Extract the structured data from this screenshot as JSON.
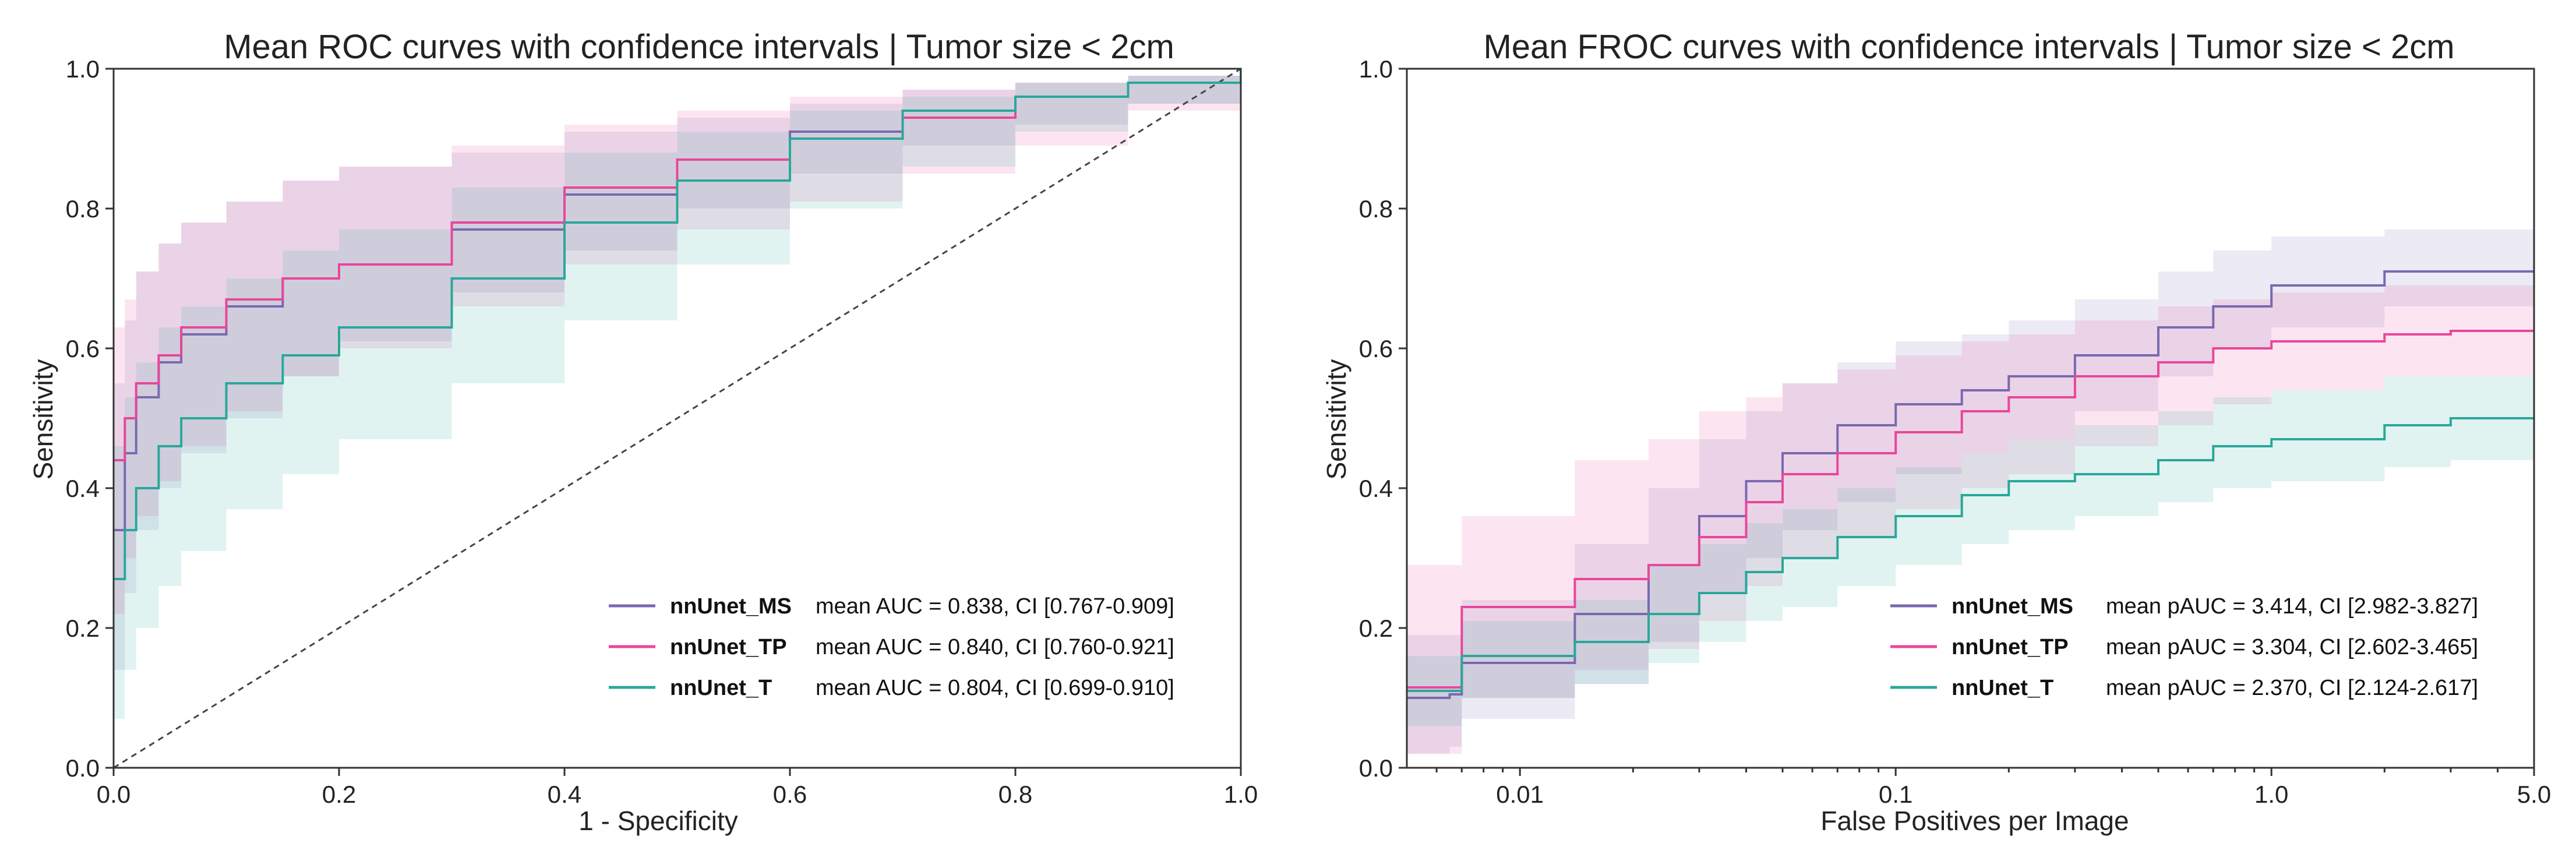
{
  "chart_data": [
    {
      "type": "line",
      "title": "Mean ROC curves with confidence intervals | Tumor size < 2cm",
      "xlabel": "1 - Specificity",
      "ylabel": "Sensitivity",
      "xlim": [
        0.0,
        1.0
      ],
      "ylim": [
        0.0,
        1.0
      ],
      "xscale": "linear",
      "xticks": [
        0.0,
        0.2,
        0.4,
        0.6,
        0.8,
        1.0
      ],
      "xtick_labels": [
        "0.0",
        "0.2",
        "0.4",
        "0.6",
        "0.8",
        "1.0"
      ],
      "yticks": [
        0.0,
        0.2,
        0.4,
        0.6,
        0.8,
        1.0
      ],
      "ytick_labels": [
        "0.0",
        "0.2",
        "0.4",
        "0.6",
        "0.8",
        "1.0"
      ],
      "legend_position": "lower-right",
      "reference_line": {
        "name": "chance",
        "x": [
          0,
          1
        ],
        "y": [
          0,
          1
        ]
      },
      "series": [
        {
          "name": "nnUnet_MS",
          "label": "mean AUC = 0.838, CI [0.767-0.909]",
          "color": "#7b68b0",
          "x": [
            0,
            0.01,
            0.02,
            0.04,
            0.06,
            0.1,
            0.15,
            0.2,
            0.3,
            0.4,
            0.5,
            0.6,
            0.7,
            0.8,
            0.9,
            1.0
          ],
          "y": [
            0.34,
            0.45,
            0.53,
            0.58,
            0.62,
            0.66,
            0.7,
            0.72,
            0.77,
            0.82,
            0.87,
            0.91,
            0.94,
            0.96,
            0.98,
            1.0
          ],
          "ci_low": [
            0.14,
            0.25,
            0.34,
            0.4,
            0.45,
            0.5,
            0.56,
            0.61,
            0.68,
            0.74,
            0.8,
            0.85,
            0.89,
            0.92,
            0.95,
            1.0
          ],
          "ci_high": [
            0.55,
            0.64,
            0.71,
            0.75,
            0.78,
            0.81,
            0.84,
            0.86,
            0.88,
            0.91,
            0.93,
            0.95,
            0.97,
            0.98,
            0.99,
            1.0
          ]
        },
        {
          "name": "nnUnet_TP",
          "label": "mean AUC = 0.840, CI [0.760-0.921]",
          "color": "#e8479a",
          "x": [
            0,
            0.01,
            0.02,
            0.04,
            0.06,
            0.1,
            0.15,
            0.2,
            0.3,
            0.4,
            0.5,
            0.6,
            0.7,
            0.8,
            0.9,
            1.0
          ],
          "y": [
            0.44,
            0.5,
            0.55,
            0.59,
            0.63,
            0.67,
            0.7,
            0.72,
            0.78,
            0.83,
            0.87,
            0.9,
            0.93,
            0.96,
            0.98,
            1.0
          ],
          "ci_low": [
            0.22,
            0.3,
            0.36,
            0.41,
            0.46,
            0.51,
            0.56,
            0.6,
            0.66,
            0.72,
            0.77,
            0.81,
            0.85,
            0.89,
            0.94,
            1.0
          ],
          "ci_high": [
            0.63,
            0.67,
            0.71,
            0.75,
            0.78,
            0.81,
            0.84,
            0.86,
            0.89,
            0.92,
            0.94,
            0.96,
            0.97,
            0.98,
            0.99,
            1.0
          ]
        },
        {
          "name": "nnUnet_T",
          "label": "mean AUC = 0.804, CI [0.699-0.910]",
          "color": "#2aa89a",
          "x": [
            0,
            0.01,
            0.02,
            0.04,
            0.06,
            0.1,
            0.15,
            0.2,
            0.3,
            0.4,
            0.5,
            0.6,
            0.7,
            0.8,
            0.9,
            1.0
          ],
          "y": [
            0.27,
            0.34,
            0.4,
            0.46,
            0.5,
            0.55,
            0.59,
            0.63,
            0.7,
            0.78,
            0.84,
            0.9,
            0.94,
            0.96,
            0.98,
            1.0
          ],
          "ci_low": [
            0.07,
            0.14,
            0.2,
            0.26,
            0.31,
            0.37,
            0.42,
            0.47,
            0.55,
            0.64,
            0.72,
            0.8,
            0.86,
            0.91,
            0.95,
            1.0
          ],
          "ci_high": [
            0.46,
            0.53,
            0.58,
            0.63,
            0.66,
            0.7,
            0.74,
            0.77,
            0.83,
            0.88,
            0.91,
            0.94,
            0.96,
            0.98,
            0.99,
            1.0
          ]
        }
      ]
    },
    {
      "type": "line",
      "title": "Mean FROC curves with confidence intervals | Tumor size < 2cm",
      "xlabel": "False Positives per Image",
      "ylabel": "Sensitivity",
      "xlim": [
        0.005,
        5.0
      ],
      "ylim": [
        0.0,
        1.0
      ],
      "xscale": "log",
      "xticks": [
        0.01,
        0.1,
        1.0,
        5.0
      ],
      "xtick_labels": [
        "0.01",
        "0.1",
        "1.0",
        "5.0"
      ],
      "yticks": [
        0.0,
        0.2,
        0.4,
        0.6,
        0.8,
        1.0
      ],
      "ytick_labels": [
        "0.0",
        "0.2",
        "0.4",
        "0.6",
        "0.8",
        "1.0"
      ],
      "legend_position": "lower-right",
      "series": [
        {
          "name": "nnUnet_MS",
          "label": "mean pAUC = 3.414, CI [2.982-3.827]",
          "color": "#7b68b0",
          "x": [
            0.005,
            0.0065,
            0.007,
            0.012,
            0.014,
            0.018,
            0.022,
            0.03,
            0.04,
            0.05,
            0.07,
            0.1,
            0.15,
            0.2,
            0.3,
            0.5,
            0.7,
            1.0,
            2.0,
            3.0,
            5.0
          ],
          "y": [
            0.1,
            0.105,
            0.15,
            0.15,
            0.22,
            0.22,
            0.29,
            0.36,
            0.41,
            0.45,
            0.49,
            0.52,
            0.54,
            0.56,
            0.59,
            0.63,
            0.66,
            0.69,
            0.71,
            0.71,
            0.71
          ],
          "ci_low": [
            0.02,
            0.03,
            0.07,
            0.07,
            0.12,
            0.12,
            0.18,
            0.25,
            0.3,
            0.34,
            0.38,
            0.42,
            0.45,
            0.47,
            0.51,
            0.56,
            0.6,
            0.63,
            0.66,
            0.66,
            0.66
          ],
          "ci_high": [
            0.19,
            0.19,
            0.24,
            0.24,
            0.32,
            0.32,
            0.4,
            0.47,
            0.51,
            0.55,
            0.58,
            0.61,
            0.62,
            0.64,
            0.67,
            0.71,
            0.74,
            0.76,
            0.77,
            0.77,
            0.77
          ]
        },
        {
          "name": "nnUnet_TP",
          "label": "mean pAUC = 3.304, CI [2.602-3.465]",
          "color": "#e8479a",
          "x": [
            0.005,
            0.0065,
            0.007,
            0.012,
            0.014,
            0.018,
            0.022,
            0.03,
            0.04,
            0.05,
            0.07,
            0.1,
            0.15,
            0.2,
            0.3,
            0.5,
            0.7,
            1.0,
            2.0,
            3.0,
            5.0
          ],
          "y": [
            0.115,
            0.115,
            0.23,
            0.23,
            0.27,
            0.27,
            0.29,
            0.33,
            0.38,
            0.42,
            0.45,
            0.48,
            0.51,
            0.53,
            0.56,
            0.58,
            0.6,
            0.61,
            0.62,
            0.625,
            0.625
          ],
          "ci_low": [
            0.02,
            0.02,
            0.1,
            0.1,
            0.14,
            0.14,
            0.17,
            0.21,
            0.26,
            0.3,
            0.33,
            0.37,
            0.4,
            0.42,
            0.46,
            0.49,
            0.52,
            0.54,
            0.56,
            0.56,
            0.56
          ],
          "ci_high": [
            0.29,
            0.29,
            0.36,
            0.36,
            0.44,
            0.44,
            0.47,
            0.51,
            0.53,
            0.55,
            0.57,
            0.59,
            0.61,
            0.62,
            0.64,
            0.66,
            0.67,
            0.68,
            0.69,
            0.69,
            0.69
          ]
        },
        {
          "name": "nnUnet_T",
          "label": "mean pAUC = 2.370, CI [2.124-2.617]",
          "color": "#2aa89a",
          "x": [
            0.005,
            0.0065,
            0.007,
            0.012,
            0.014,
            0.018,
            0.022,
            0.03,
            0.04,
            0.05,
            0.07,
            0.1,
            0.15,
            0.2,
            0.3,
            0.5,
            0.7,
            1.0,
            2.0,
            3.0,
            5.0
          ],
          "y": [
            0.11,
            0.11,
            0.16,
            0.16,
            0.18,
            0.18,
            0.22,
            0.25,
            0.28,
            0.3,
            0.33,
            0.36,
            0.39,
            0.41,
            0.42,
            0.44,
            0.46,
            0.47,
            0.49,
            0.5,
            0.5
          ],
          "ci_low": [
            0.06,
            0.06,
            0.1,
            0.1,
            0.12,
            0.12,
            0.15,
            0.18,
            0.21,
            0.23,
            0.26,
            0.29,
            0.32,
            0.34,
            0.36,
            0.38,
            0.4,
            0.41,
            0.43,
            0.44,
            0.44
          ],
          "ci_high": [
            0.16,
            0.16,
            0.21,
            0.21,
            0.24,
            0.24,
            0.29,
            0.32,
            0.35,
            0.37,
            0.4,
            0.43,
            0.45,
            0.47,
            0.49,
            0.51,
            0.53,
            0.54,
            0.56,
            0.56,
            0.56
          ]
        }
      ]
    }
  ]
}
